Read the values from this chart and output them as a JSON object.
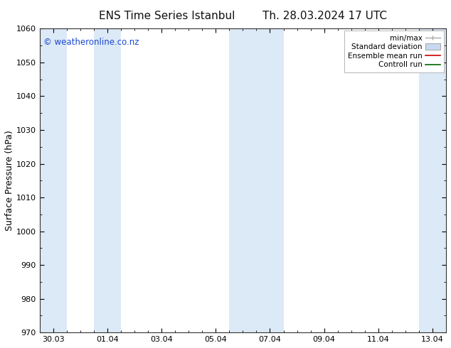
{
  "title_left": "ENS Time Series Istanbul",
  "title_right": "Th. 28.03.2024 17 UTC",
  "ylabel": "Surface Pressure (hPa)",
  "ylim": [
    970,
    1060
  ],
  "yticks": [
    970,
    980,
    990,
    1000,
    1010,
    1020,
    1030,
    1040,
    1050,
    1060
  ],
  "xtick_labels": [
    "30.03",
    "01.04",
    "03.04",
    "05.04",
    "07.04",
    "09.04",
    "11.04",
    "13.04"
  ],
  "xtick_positions": [
    0,
    2,
    4,
    6,
    8,
    10,
    12,
    14
  ],
  "xlim": [
    -0.5,
    14.5
  ],
  "shaded_bands": [
    {
      "x_start": -0.5,
      "x_end": 0.5
    },
    {
      "x_start": 1.5,
      "x_end": 2.5
    },
    {
      "x_start": 6.5,
      "x_end": 8.5
    },
    {
      "x_start": 13.5,
      "x_end": 14.5
    }
  ],
  "shaded_color": "#dce9f7",
  "watermark_text": "© weatheronline.co.nz",
  "watermark_color": "#1a48cc",
  "legend_items": [
    {
      "label": "min/max",
      "color": "#aaaaaa",
      "type": "errorbar"
    },
    {
      "label": "Standard deviation",
      "color": "#c8d8f0",
      "type": "box"
    },
    {
      "label": "Ensemble mean run",
      "color": "#cc0000",
      "type": "line"
    },
    {
      "label": "Controll run",
      "color": "#006600",
      "type": "line"
    }
  ],
  "bg_color": "#ffffff",
  "plot_bg_color": "#ffffff",
  "title_fontsize": 11,
  "tick_fontsize": 8,
  "ylabel_fontsize": 9,
  "watermark_fontsize": 8.5,
  "legend_fontsize": 7.5
}
